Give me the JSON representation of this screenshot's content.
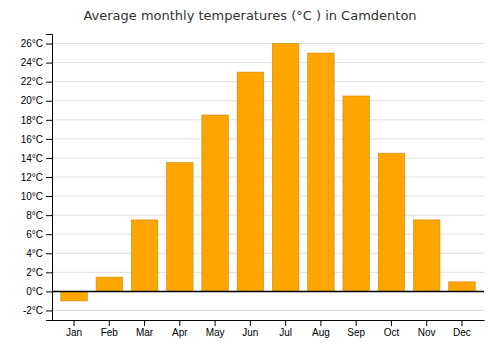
{
  "chart_data": {
    "type": "bar",
    "title": "Average monthly temperatures (°C ) in Camdenton",
    "categories": [
      "Jan",
      "Feb",
      "Mar",
      "Apr",
      "May",
      "Jun",
      "Jul",
      "Aug",
      "Sep",
      "Oct",
      "Nov",
      "Dec"
    ],
    "values": [
      -1.0,
      1.5,
      7.5,
      13.5,
      18.5,
      23.0,
      26.0,
      25.0,
      20.5,
      14.5,
      7.5,
      1.0
    ],
    "color": "#FFA500",
    "ylim": [
      -3.0,
      27.0
    ],
    "yticks": [
      {
        "value": -2,
        "label": "-2°C"
      },
      {
        "value": 0,
        "label": "0°C"
      },
      {
        "value": 2,
        "label": "2°C"
      },
      {
        "value": 4,
        "label": "4°C"
      },
      {
        "value": 6,
        "label": "6°C"
      },
      {
        "value": 8,
        "label": "8°C"
      },
      {
        "value": 10,
        "label": "10°C"
      },
      {
        "value": 12,
        "label": "12°C"
      },
      {
        "value": 14,
        "label": "14°C"
      },
      {
        "value": 16,
        "label": "16°C"
      },
      {
        "value": 18,
        "label": "18°C"
      },
      {
        "value": 20,
        "label": "20°C"
      },
      {
        "value": 22,
        "label": "22°C"
      },
      {
        "value": 24,
        "label": "24°C"
      },
      {
        "value": 26,
        "label": "26°C"
      }
    ],
    "grid": true
  }
}
